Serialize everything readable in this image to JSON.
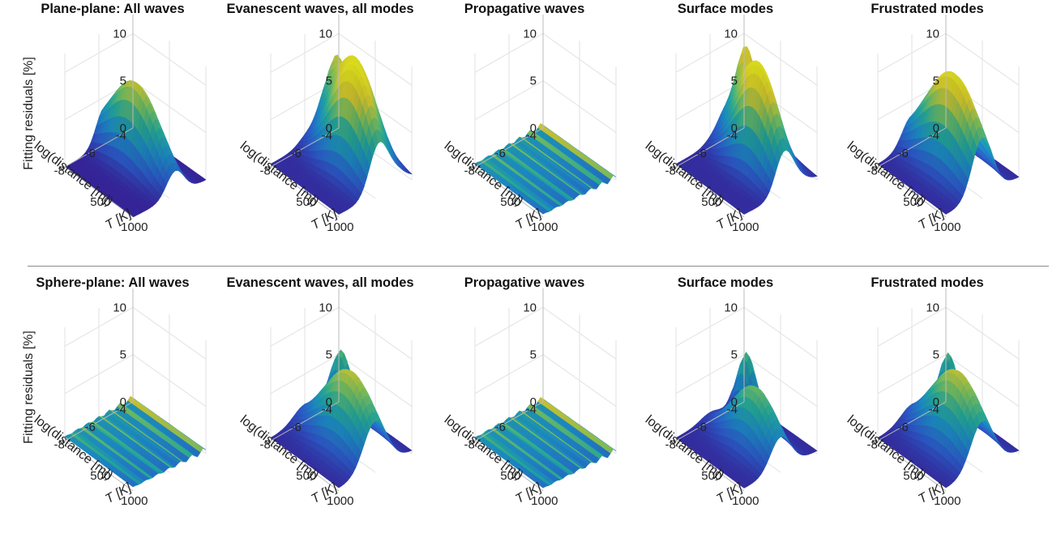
{
  "figure": {
    "divider": true,
    "colormap": [
      "#3b28a8",
      "#2f62d9",
      "#1f96d6",
      "#28b8a8",
      "#7fcf6a",
      "#e6d833",
      "#f0f022"
    ]
  },
  "chart_data": [
    {
      "type": "surface3d",
      "row": 0,
      "col": 0,
      "title": "Plane-plane: All waves",
      "zlabel": "Fitting residuals [%]",
      "xlabel": "log(distance [m])",
      "ylabel": "T [K]",
      "zlim": [
        0,
        12
      ],
      "zticks": [
        0,
        5,
        10
      ],
      "xticks": [
        -4,
        -6,
        -8
      ],
      "yticks": [
        500,
        1000
      ],
      "peaks": [
        {
          "d": 0.42,
          "t": 0.55,
          "z": 9.0,
          "wd": 0.12,
          "wt": 0.35
        },
        {
          "d": 0.08,
          "t": 0.92,
          "z": 4.2,
          "wd": 0.1,
          "wt": 0.08
        }
      ],
      "base": 0.0
    },
    {
      "type": "surface3d",
      "row": 0,
      "col": 1,
      "title": "Evanescent waves, all modes",
      "zlabel": "",
      "xlabel": "log(distance [m])",
      "ylabel": "T [K]",
      "zlim": [
        0,
        12
      ],
      "zticks": [
        0,
        5,
        10
      ],
      "xticks": [
        -4,
        -6,
        -8
      ],
      "yticks": [
        500,
        1000
      ],
      "peaks": [
        {
          "d": 0.45,
          "t": 0.35,
          "z": 10.5,
          "wd": 0.13,
          "wt": 0.3
        },
        {
          "d": 0.2,
          "t": 0.6,
          "z": 9.0,
          "wd": 0.12,
          "wt": 0.3
        },
        {
          "d": 0.08,
          "t": 0.92,
          "z": 4.5,
          "wd": 0.1,
          "wt": 0.08
        }
      ],
      "base": 0.3
    },
    {
      "type": "surface3d",
      "row": 0,
      "col": 2,
      "title": "Propagative waves",
      "zlabel": "",
      "xlabel": "log(distance [m])",
      "ylabel": "T [K]",
      "zlim": [
        0,
        12
      ],
      "zticks": [
        0,
        5,
        10
      ],
      "xticks": [
        -4,
        -6,
        -8
      ],
      "yticks": [
        500,
        1000
      ],
      "peaks": [],
      "base": 0.3,
      "stripes": true
    },
    {
      "type": "surface3d",
      "row": 0,
      "col": 3,
      "title": "Surface modes",
      "zlabel": "",
      "xlabel": "log(distance [m])",
      "ylabel": "T [K]",
      "zlim": [
        0,
        12
      ],
      "zticks": [
        0,
        5,
        10
      ],
      "xticks": [
        -4,
        -6,
        -8
      ],
      "yticks": [
        500,
        1000
      ],
      "peaks": [
        {
          "d": 0.45,
          "t": 0.35,
          "z": 9.5,
          "wd": 0.12,
          "wt": 0.28
        },
        {
          "d": 0.25,
          "t": 0.6,
          "z": 7.8,
          "wd": 0.12,
          "wt": 0.28
        },
        {
          "d": 0.12,
          "t": 0.85,
          "z": 6.5,
          "wd": 0.08,
          "wt": 0.1
        }
      ],
      "base": 0.3
    },
    {
      "type": "surface3d",
      "row": 0,
      "col": 4,
      "title": "Frustrated modes",
      "zlabel": "",
      "xlabel": "log(distance [m])",
      "ylabel": "T [K]",
      "zlim": [
        0,
        12
      ],
      "zticks": [
        0,
        5,
        10
      ],
      "xticks": [
        -4,
        -6,
        -8
      ],
      "yticks": [
        500,
        1000
      ],
      "peaks": [
        {
          "d": 0.5,
          "t": 0.4,
          "z": 10.8,
          "wd": 0.14,
          "wt": 0.38
        },
        {
          "d": 0.15,
          "t": 0.85,
          "z": 6.0,
          "wd": 0.08,
          "wt": 0.1
        }
      ],
      "base": 0.3
    },
    {
      "type": "surface3d",
      "row": 1,
      "col": 0,
      "title": "Sphere-plane: All waves",
      "zlabel": "Fitting residuals [%]",
      "xlabel": "log(distance [m])",
      "ylabel": "T [K]",
      "zlim": [
        0,
        12
      ],
      "zticks": [
        0,
        5,
        10
      ],
      "xticks": [
        -4,
        -6,
        -8
      ],
      "yticks": [
        500,
        1000
      ],
      "peaks": [],
      "base": 0.4,
      "stripes": true
    },
    {
      "type": "surface3d",
      "row": 1,
      "col": 1,
      "title": "Evanescent waves, all modes",
      "zlabel": "",
      "xlabel": "log(distance [m])",
      "ylabel": "T [K]",
      "zlim": [
        0,
        12
      ],
      "zticks": [
        0,
        5,
        10
      ],
      "xticks": [
        -4,
        -6,
        -8
      ],
      "yticks": [
        500,
        1000
      ],
      "peaks": [
        {
          "d": 0.5,
          "t": 0.35,
          "z": 8.5,
          "wd": 0.16,
          "wt": 0.35
        },
        {
          "d": 0.12,
          "t": 0.85,
          "z": 6.3,
          "wd": 0.08,
          "wt": 0.12
        }
      ],
      "base": 0.3
    },
    {
      "type": "surface3d",
      "row": 1,
      "col": 2,
      "title": "Propagative waves",
      "zlabel": "",
      "xlabel": "log(distance [m])",
      "ylabel": "T [K]",
      "zlim": [
        0,
        12
      ],
      "zticks": [
        0,
        5,
        10
      ],
      "xticks": [
        -4,
        -6,
        -8
      ],
      "yticks": [
        500,
        1000
      ],
      "peaks": [],
      "base": 0.3,
      "stripes": true
    },
    {
      "type": "surface3d",
      "row": 1,
      "col": 3,
      "title": "Surface modes",
      "zlabel": "",
      "xlabel": "log(distance [m])",
      "ylabel": "T [K]",
      "zlim": [
        0,
        12
      ],
      "zticks": [
        0,
        5,
        10
      ],
      "xticks": [
        -4,
        -6,
        -8
      ],
      "yticks": [
        500,
        1000
      ],
      "peaks": [
        {
          "d": 0.5,
          "t": 0.35,
          "z": 6.8,
          "wd": 0.14,
          "wt": 0.3
        },
        {
          "d": 0.12,
          "t": 0.85,
          "z": 6.2,
          "wd": 0.08,
          "wt": 0.1
        }
      ],
      "base": 0.3
    },
    {
      "type": "surface3d",
      "row": 1,
      "col": 4,
      "title": "Frustrated modes",
      "zlabel": "",
      "xlabel": "log(distance [m])",
      "ylabel": "T [K]",
      "zlim": [
        0,
        12
      ],
      "zticks": [
        0,
        5,
        10
      ],
      "xticks": [
        -4,
        -6,
        -8
      ],
      "yticks": [
        500,
        1000
      ],
      "peaks": [
        {
          "d": 0.5,
          "t": 0.35,
          "z": 8.5,
          "wd": 0.16,
          "wt": 0.35
        },
        {
          "d": 0.12,
          "t": 0.85,
          "z": 6.0,
          "wd": 0.08,
          "wt": 0.1
        }
      ],
      "base": 0.3
    }
  ]
}
